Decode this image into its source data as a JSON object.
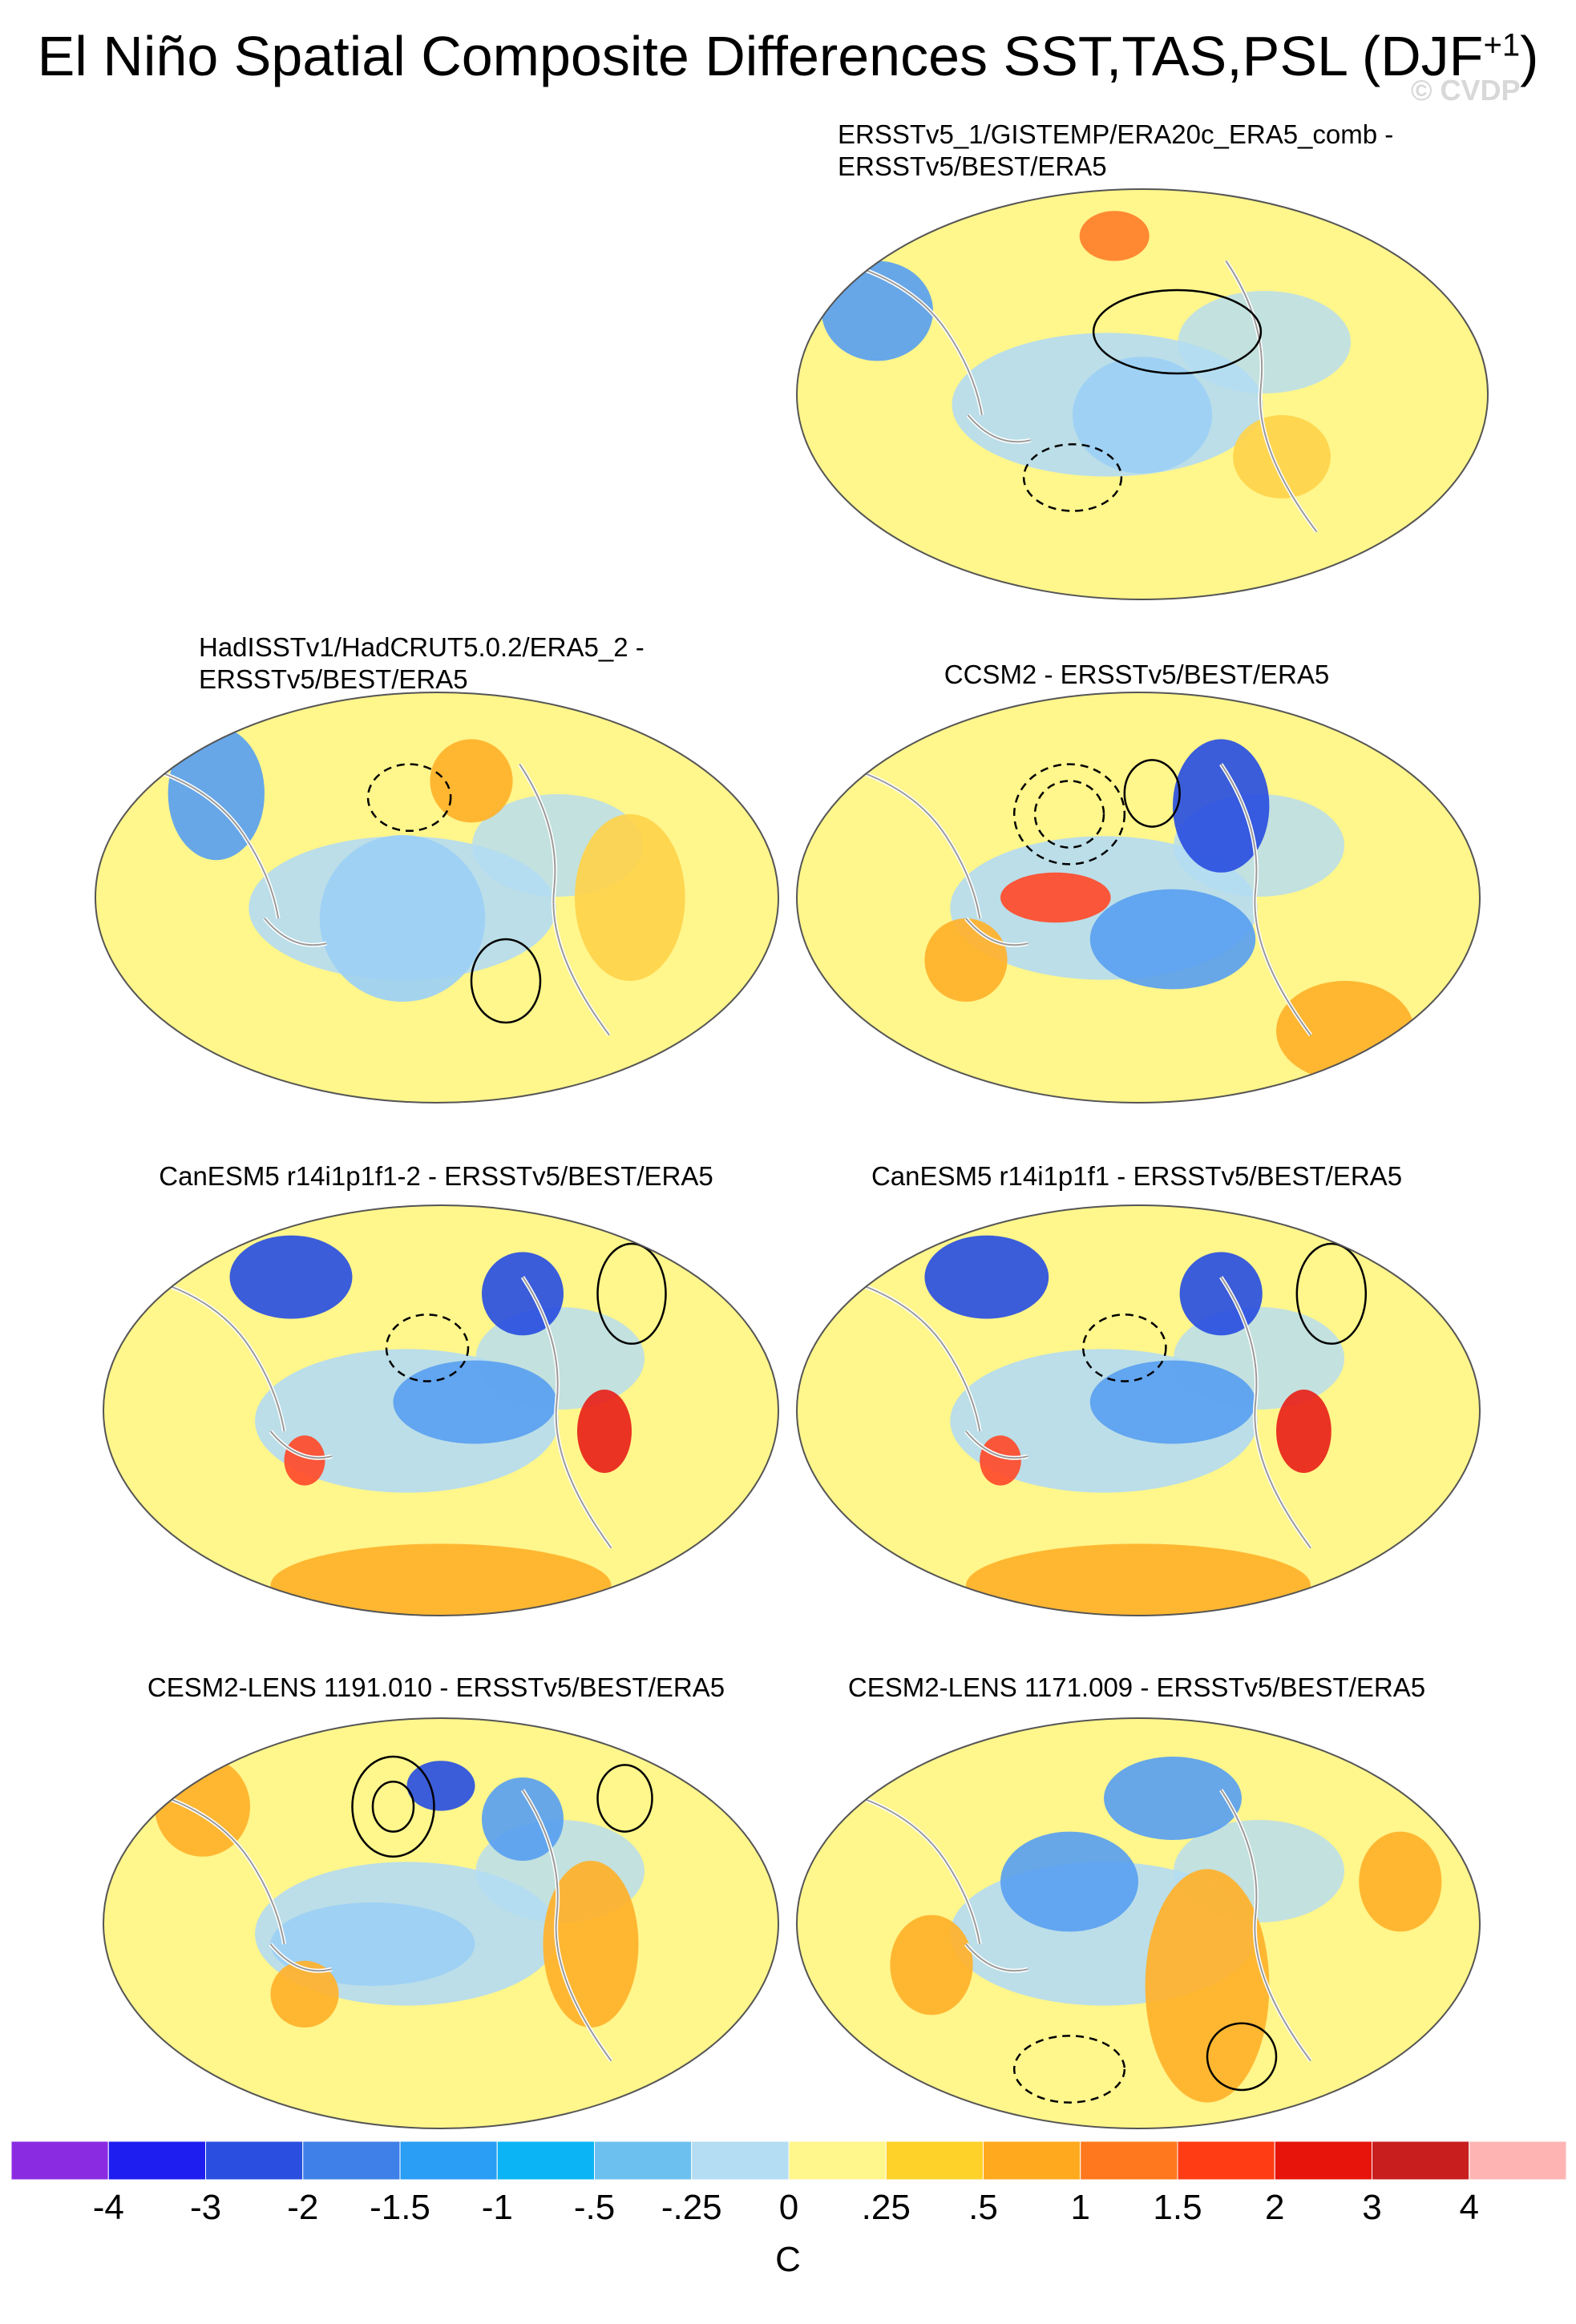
{
  "figure": {
    "title_main": "El Niño Spatial Composite Differences SST,TAS,PSL (DJF",
    "title_sup": "+1",
    "title_end": ")",
    "watermark": "© CVDP"
  },
  "panels": [
    {
      "id": "p1",
      "title_line1": "ERSSTv5_1/GISTEMP/ERA20c_ERA5_comb -",
      "title_line2": "ERSSTv5/BEST/ERA5",
      "blobs": [
        [
          "#5aa0f0",
          0.12,
          0.3,
          0.08,
          0.06
        ],
        [
          "#9ccff5",
          0.5,
          0.55,
          0.1,
          0.07
        ],
        [
          "#ffd24a",
          0.7,
          0.65,
          0.07,
          0.05
        ],
        [
          "#ff7f2a",
          0.46,
          0.12,
          0.05,
          0.03
        ]
      ],
      "contours": [
        [
          0.55,
          0.35,
          0.12,
          0.05,
          false
        ],
        [
          0.4,
          0.7,
          0.07,
          0.04,
          true
        ]
      ]
    },
    {
      "id": "p2",
      "title_line1": "HadISSTv1/HadCRUT5.0.2/ERA5_2 -",
      "title_line2": "ERSSTv5/BEST/ERA5",
      "blobs": [
        [
          "#5aa0f0",
          0.18,
          0.25,
          0.07,
          0.08
        ],
        [
          "#ffb12a",
          0.55,
          0.22,
          0.06,
          0.05
        ],
        [
          "#9ccff5",
          0.45,
          0.55,
          0.12,
          0.1
        ],
        [
          "#ffd24a",
          0.78,
          0.5,
          0.08,
          0.1
        ]
      ],
      "contours": [
        [
          0.46,
          0.26,
          0.06,
          0.04,
          true
        ],
        [
          0.6,
          0.7,
          0.05,
          0.05,
          false
        ]
      ]
    },
    {
      "id": "p3",
      "title_line1": "CCSM2 - ERSSTv5/BEST/ERA5",
      "title_line2": "",
      "blobs": [
        [
          "#2a4fe0",
          0.62,
          0.28,
          0.07,
          0.08
        ],
        [
          "#ff4a2a",
          0.38,
          0.5,
          0.08,
          0.03
        ],
        [
          "#ffb12a",
          0.25,
          0.65,
          0.06,
          0.05
        ],
        [
          "#5aa0f0",
          0.55,
          0.6,
          0.12,
          0.06
        ],
        [
          "#ffb12a",
          0.8,
          0.82,
          0.1,
          0.06
        ]
      ],
      "contours": [
        [
          0.4,
          0.3,
          0.08,
          0.06,
          true
        ],
        [
          0.4,
          0.3,
          0.05,
          0.04,
          true
        ],
        [
          0.52,
          0.25,
          0.04,
          0.04,
          false
        ]
      ]
    },
    {
      "id": "p4",
      "title_line1": "CanESM5 r14i1p1f1-2 - ERSSTv5/BEST/ERA5",
      "title_line2": "",
      "blobs": [
        [
          "#2a4fe0",
          0.28,
          0.18,
          0.09,
          0.05
        ],
        [
          "#2a4fe0",
          0.62,
          0.22,
          0.06,
          0.05
        ],
        [
          "#e8221a",
          0.74,
          0.55,
          0.04,
          0.05
        ],
        [
          "#ff4a2a",
          0.3,
          0.62,
          0.03,
          0.03
        ],
        [
          "#5aa0f0",
          0.55,
          0.48,
          0.12,
          0.05
        ],
        [
          "#ffb12a",
          0.5,
          0.92,
          0.25,
          0.05
        ]
      ],
      "contours": [
        [
          0.78,
          0.22,
          0.05,
          0.06,
          false
        ],
        [
          0.48,
          0.35,
          0.06,
          0.04,
          true
        ]
      ]
    },
    {
      "id": "p5",
      "title_line1": "CanESM5 r14i1p1f1 - ERSSTv5/BEST/ERA5",
      "title_line2": "",
      "blobs": [
        [
          "#2a4fe0",
          0.28,
          0.18,
          0.09,
          0.05
        ],
        [
          "#2a4fe0",
          0.62,
          0.22,
          0.06,
          0.05
        ],
        [
          "#e8221a",
          0.74,
          0.55,
          0.04,
          0.05
        ],
        [
          "#ff4a2a",
          0.3,
          0.62,
          0.03,
          0.03
        ],
        [
          "#5aa0f0",
          0.55,
          0.48,
          0.12,
          0.05
        ],
        [
          "#ffb12a",
          0.5,
          0.92,
          0.25,
          0.05
        ]
      ],
      "contours": [
        [
          0.78,
          0.22,
          0.05,
          0.06,
          false
        ],
        [
          0.48,
          0.35,
          0.06,
          0.04,
          true
        ]
      ]
    },
    {
      "id": "p6",
      "title_line1": "CESM2-LENS 1191.010 - ERSSTv5/BEST/ERA5",
      "title_line2": "",
      "blobs": [
        [
          "#2a4fe0",
          0.5,
          0.17,
          0.05,
          0.03
        ],
        [
          "#5aa0f0",
          0.62,
          0.25,
          0.06,
          0.05
        ],
        [
          "#ffb12a",
          0.72,
          0.55,
          0.07,
          0.1
        ],
        [
          "#ffb12a",
          0.15,
          0.22,
          0.07,
          0.06
        ],
        [
          "#9ccff5",
          0.4,
          0.55,
          0.15,
          0.05
        ],
        [
          "#ffb12a",
          0.3,
          0.67,
          0.05,
          0.04
        ]
      ],
      "contours": [
        [
          0.43,
          0.22,
          0.06,
          0.06,
          false
        ],
        [
          0.43,
          0.22,
          0.03,
          0.03,
          false
        ],
        [
          0.77,
          0.2,
          0.04,
          0.04,
          false
        ]
      ]
    },
    {
      "id": "p7",
      "title_line1": "CESM2-LENS 1171.009 - ERSSTv5/BEST/ERA5",
      "title_line2": "",
      "blobs": [
        [
          "#ffb12a",
          0.6,
          0.65,
          0.09,
          0.14
        ],
        [
          "#5aa0f0",
          0.4,
          0.4,
          0.1,
          0.06
        ],
        [
          "#ffb12a",
          0.2,
          0.6,
          0.06,
          0.06
        ],
        [
          "#5aa0f0",
          0.55,
          0.2,
          0.1,
          0.05
        ],
        [
          "#ffb12a",
          0.88,
          0.4,
          0.06,
          0.06
        ]
      ],
      "contours": [
        [
          0.65,
          0.82,
          0.05,
          0.04,
          false
        ],
        [
          0.4,
          0.85,
          0.08,
          0.04,
          true
        ]
      ]
    }
  ],
  "chart_data": {
    "type": "heatmap",
    "title": "El Niño Spatial Composite Differences SST,TAS,PSL (DJF+1)",
    "variables": [
      "SST",
      "TAS",
      "PSL"
    ],
    "season": "DJF+1",
    "panels": [
      "ERSSTv5_1/GISTEMP/ERA20c_ERA5_comb - ERSSTv5/BEST/ERA5",
      "HadISSTv1/HadCRUT5.0.2/ERA5_2 - ERSSTv5/BEST/ERA5",
      "CCSM2 - ERSSTv5/BEST/ERA5",
      "CanESM5 r14i1p1f1-2 - ERSSTv5/BEST/ERA5",
      "CanESM5 r14i1p1f1 - ERSSTv5/BEST/ERA5",
      "CESM2-LENS 1191.010 - ERSSTv5/BEST/ERA5",
      "CESM2-LENS 1171.009 - ERSSTv5/BEST/ERA5"
    ],
    "colorbar": {
      "unit": "C",
      "tick_labels": [
        "-4",
        "-3",
        "-2",
        "-1.5",
        "-1",
        "-.5",
        "-.25",
        "0",
        ".25",
        ".5",
        "1",
        "1.5",
        "2",
        "3",
        "4"
      ],
      "colors": [
        "#8a2be2",
        "#1e1ef0",
        "#2a4fe0",
        "#3f7fe8",
        "#2a9df5",
        "#0ab4f5",
        "#6cc0f0",
        "#b4dcf2",
        "#fff68c",
        "#ffd22a",
        "#ffaa1e",
        "#ff781e",
        "#ff3c14",
        "#e6140a",
        "#c81e1e",
        "#ffb4b4"
      ]
    }
  }
}
